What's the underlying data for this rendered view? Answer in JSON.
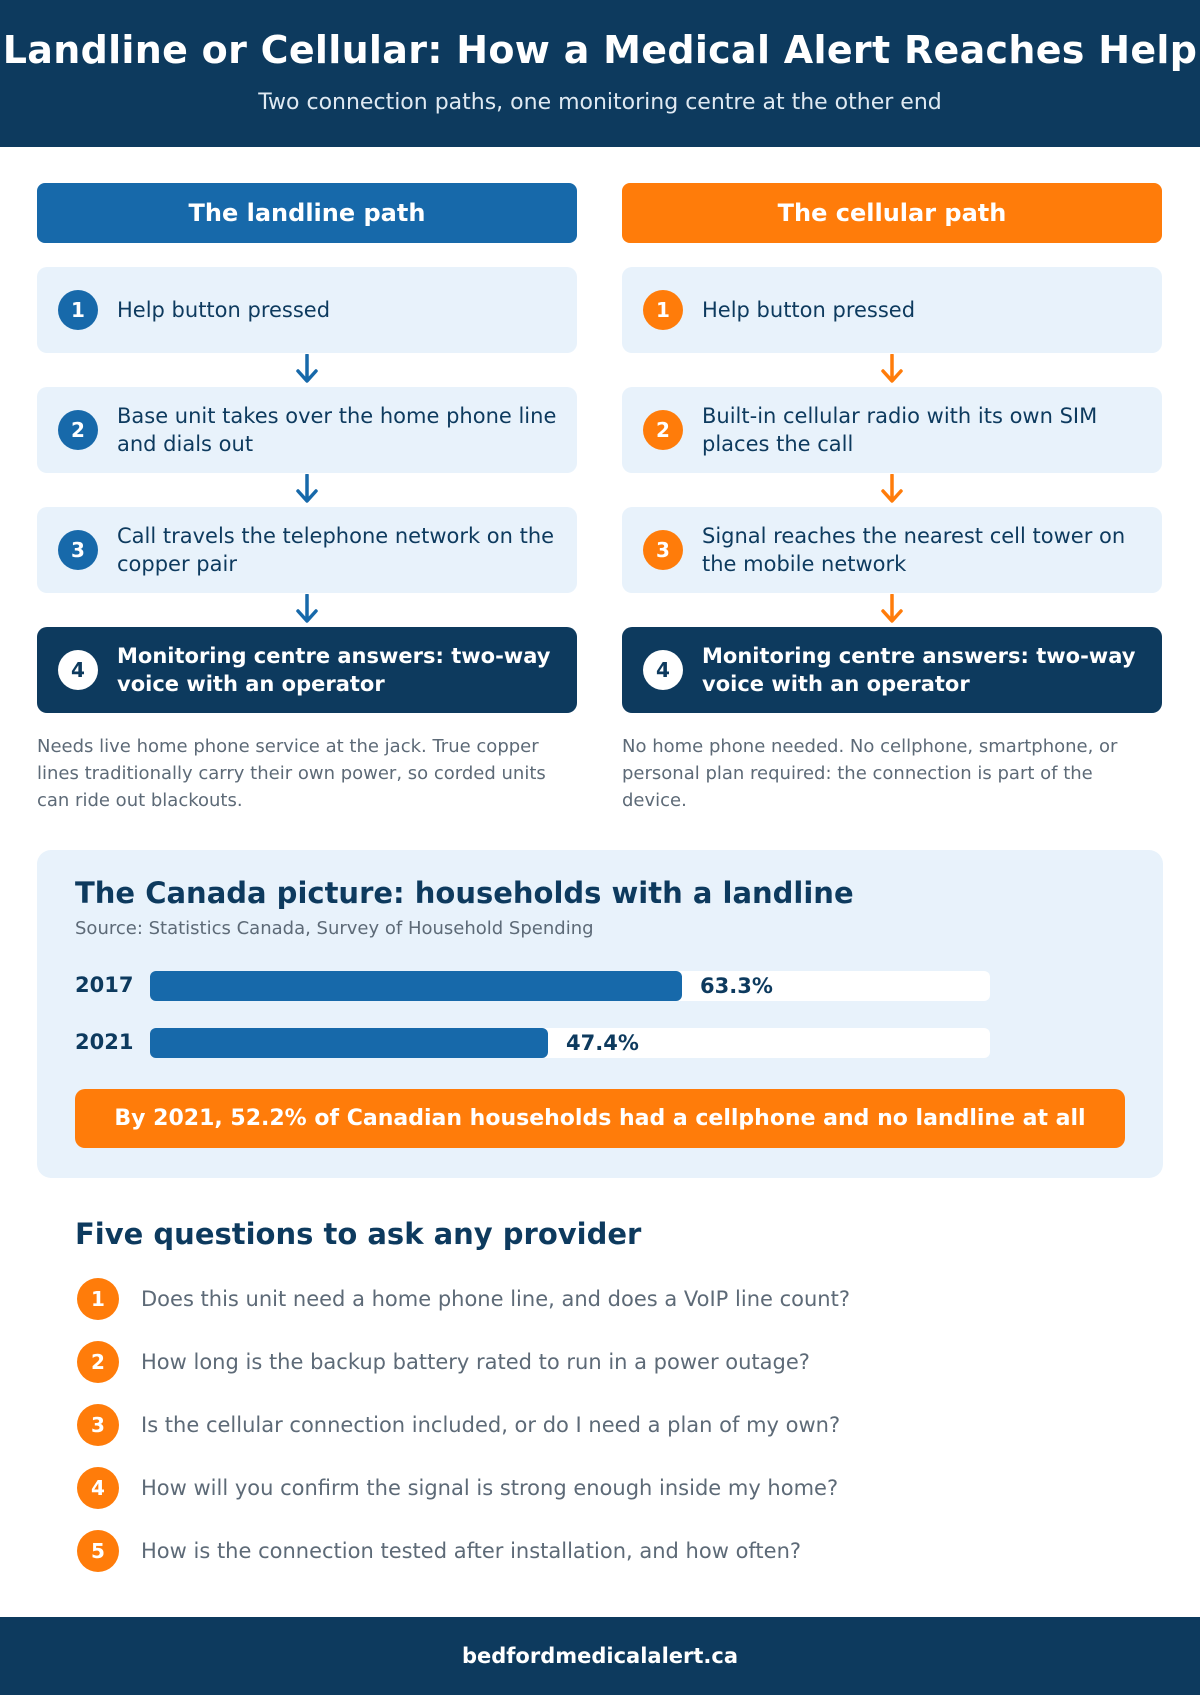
{
  "header": {
    "title": "Landline or Cellular: How a Medical Alert Reaches Help",
    "subtitle": "Two connection paths, one monitoring centre at the other end"
  },
  "landline": {
    "heading": "The landline path",
    "steps": [
      {
        "num": "1",
        "text": "Help button pressed"
      },
      {
        "num": "2",
        "text": "Base unit takes over the home phone line and dials out"
      },
      {
        "num": "3",
        "text": "Call travels the telephone network on the copper pair"
      },
      {
        "num": "4",
        "text": "Monitoring centre answers: two-way voice with an operator"
      }
    ],
    "note": "Needs live home phone service at the jack. True copper lines traditionally carry their own power, so corded units can ride out blackouts."
  },
  "cellular": {
    "heading": "The cellular path",
    "steps": [
      {
        "num": "1",
        "text": "Help button pressed"
      },
      {
        "num": "2",
        "text": "Built-in cellular radio with its own SIM places the call"
      },
      {
        "num": "3",
        "text": "Signal reaches the nearest cell tower on the mobile network"
      },
      {
        "num": "4",
        "text": "Monitoring centre answers: two-way voice with an operator"
      }
    ],
    "note": "No home phone needed. No cellphone, smartphone, or personal plan required: the connection is part of the device."
  },
  "colors": {
    "navy": "#0d3a5e",
    "blue": "#1769aa",
    "orange": "#ff7c0a",
    "light": "#e8f2fb"
  },
  "stats": {
    "title": "The Canada picture: households with a landline",
    "source": "Source: Statistics Canada, Survey of Household Spending",
    "callout": "By 2021, 52.2% of Canadian households had a cellphone and no landline at all"
  },
  "chart_data": {
    "type": "bar",
    "orientation": "horizontal",
    "categories": [
      "2017",
      "2021"
    ],
    "values": [
      63.3,
      47.4
    ],
    "value_labels": [
      "63.3%",
      "47.4%"
    ],
    "xlim": [
      0,
      100
    ]
  },
  "questions": {
    "title": "Five questions to ask any provider",
    "items": [
      {
        "num": "1",
        "text": "Does this unit need a home phone line, and does a VoIP line count?"
      },
      {
        "num": "2",
        "text": "How long is the backup battery rated to run in a power outage?"
      },
      {
        "num": "3",
        "text": "Is the cellular connection included, or do I need a plan of my own?"
      },
      {
        "num": "4",
        "text": "How will you confirm the signal is strong enough inside my home?"
      },
      {
        "num": "5",
        "text": "How is the connection tested after installation, and how often?"
      }
    ]
  },
  "footer": {
    "url": "bedfordmedicalalert.ca"
  }
}
